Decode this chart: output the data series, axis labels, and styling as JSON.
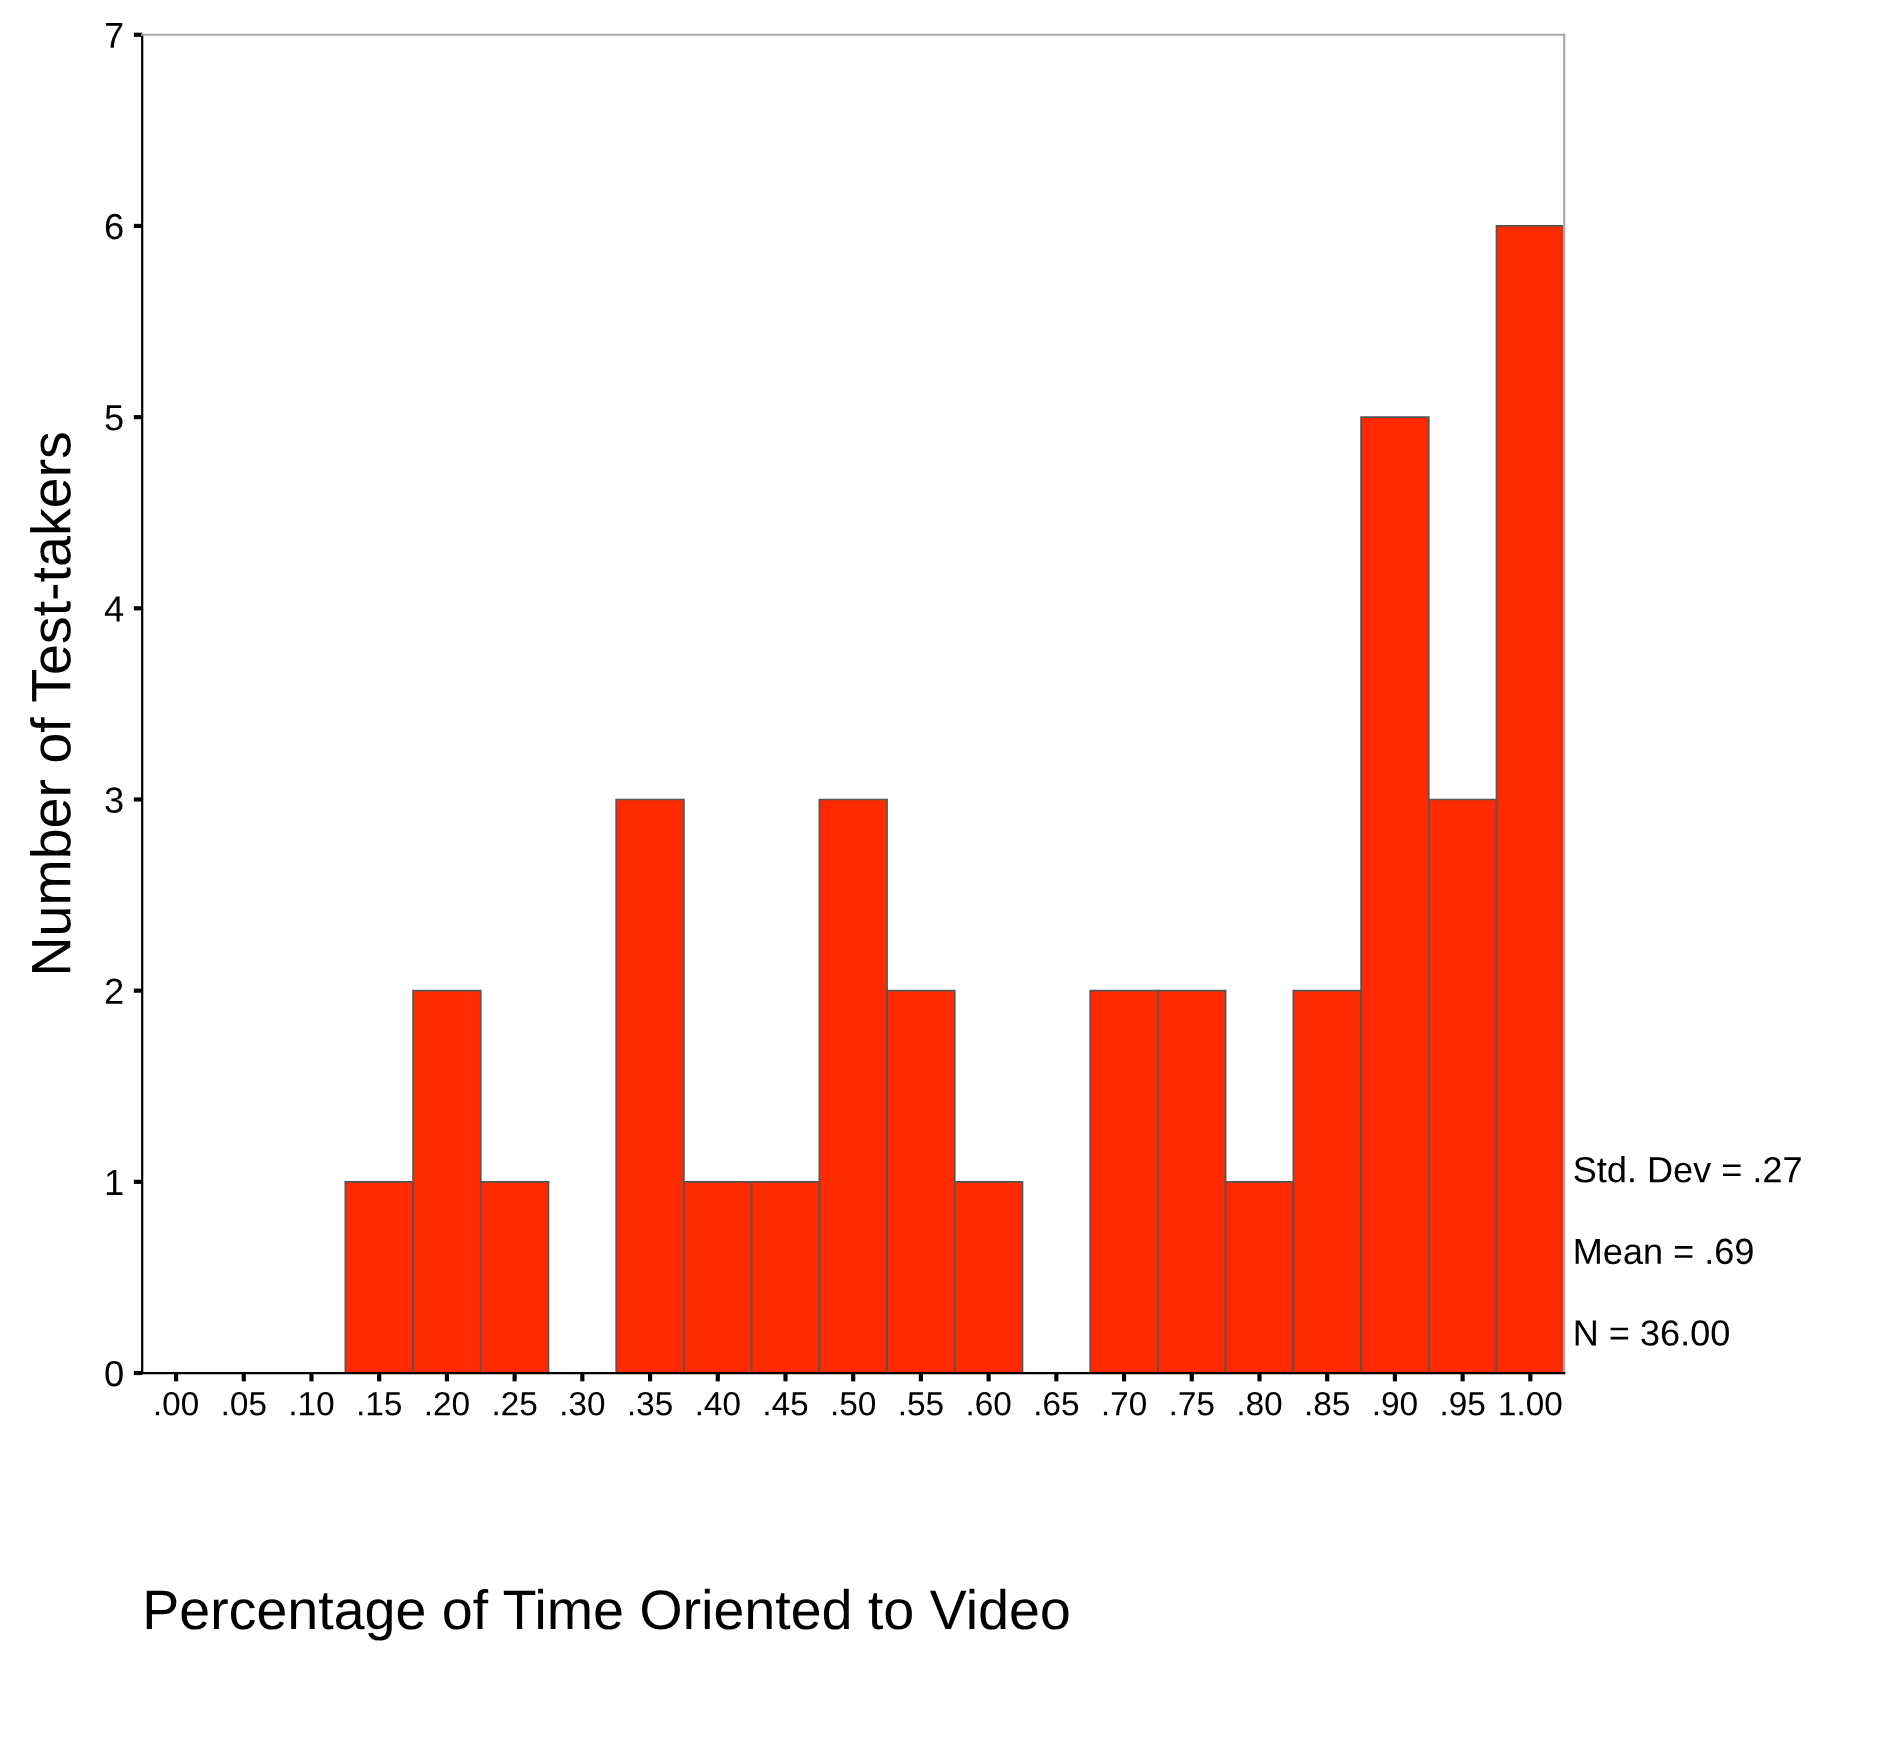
{
  "chart_data": {
    "type": "histogram",
    "xlabel": "Percentage of Time Oriented to Video",
    "ylabel": "Number of Test-takers",
    "bins": [
      -0.025,
      0.025,
      0.075,
      0.125,
      0.175,
      0.225,
      0.275,
      0.325,
      0.375,
      0.425,
      0.475,
      0.525,
      0.575,
      0.625,
      0.675,
      0.725,
      0.775,
      0.825,
      0.875,
      0.925,
      0.975,
      1.025
    ],
    "values": [
      0,
      0,
      0,
      1,
      2,
      1,
      0,
      3,
      1,
      1,
      3,
      2,
      1,
      0,
      2,
      2,
      1,
      2,
      5,
      3,
      6
    ],
    "color": "#ff2a00",
    "xlim": [
      -0.025,
      1.025
    ],
    "ylim": [
      0,
      7
    ],
    "yticks": [
      0,
      1,
      2,
      3,
      4,
      5,
      6,
      7
    ],
    "xticks": [
      {
        "value": 0,
        "label": ".00"
      },
      {
        "value": 0.05,
        "label": ".05"
      },
      {
        "value": 0.1,
        "label": ".10"
      },
      {
        "value": 0.15,
        "label": ".15"
      },
      {
        "value": 0.2,
        "label": ".20"
      },
      {
        "value": 0.25,
        "label": ".25"
      },
      {
        "value": 0.3,
        "label": ".30"
      },
      {
        "value": 0.35,
        "label": ".35"
      },
      {
        "value": 0.4,
        "label": ".40"
      },
      {
        "value": 0.45,
        "label": ".45"
      },
      {
        "value": 0.5,
        "label": ".50"
      },
      {
        "value": 0.55,
        "label": ".55"
      },
      {
        "value": 0.6,
        "label": ".60"
      },
      {
        "value": 0.65,
        "label": ".65"
      },
      {
        "value": 0.7,
        "label": ".70"
      },
      {
        "value": 0.75,
        "label": ".75"
      },
      {
        "value": 0.8,
        "label": ".80"
      },
      {
        "value": 0.85,
        "label": ".85"
      },
      {
        "value": 0.9,
        "label": ".90"
      },
      {
        "value": 0.95,
        "label": ".95"
      },
      {
        "value": 1.0,
        "label": "1.00"
      }
    ],
    "annotations": [
      "Std. Dev = .27",
      "Mean = .69",
      "N = 36.00"
    ],
    "grid": false
  }
}
